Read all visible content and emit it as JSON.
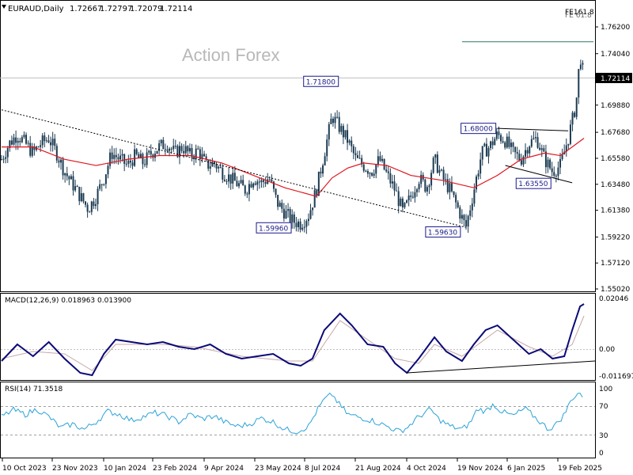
{
  "header": {
    "symbol": "EURAUD,Daily",
    "open": "1.72667",
    "high": "1.72797",
    "low": "1.72079",
    "close": "1.72114"
  },
  "watermark": "Action Forex",
  "fe_label": "FE161.8",
  "fe_label_2": "FE 61.8",
  "current_price": "1.72114",
  "colors": {
    "candle": "#1c3b52",
    "ma": "#e0141e",
    "macd": "#0a0a78",
    "signal": "#c8a8a8",
    "rsi": "#2aa2d8",
    "trendline": "#000000",
    "fe_line": "#2e7a64",
    "grid": "#c0c0c0",
    "label_bg": "#ffffff",
    "label_border": "#1a1a8c",
    "label_text": "#1a1a8c",
    "price_tag_bg": "#000000"
  },
  "price_axis": {
    "ticks": [
      "1.76200",
      "1.74040",
      "1.71980",
      "1.69880",
      "1.67680",
      "1.65580",
      "1.63480",
      "1.61380",
      "1.59220",
      "1.57120",
      "1.55020"
    ],
    "min": 1.5502,
    "max": 1.766
  },
  "macd_panel": {
    "label": "MACD(12,26,9) 0.018963 0.013900",
    "ticks": [
      "0.02046",
      "0.00",
      "-0.011697"
    ]
  },
  "rsi_panel": {
    "label": "RSI(14) 71.3518",
    "ticks": [
      "100",
      "70",
      "30",
      "0"
    ],
    "levels": [
      70,
      30
    ]
  },
  "time_axis": [
    "10 Oct 2023",
    "23 Nov 2023",
    "10 Jan 2024",
    "23 Feb 2024",
    "9 Apr 2024",
    "23 May 2024",
    "8 Jul 2024",
    "21 Aug 2024",
    "4 Oct 2024",
    "19 Nov 2024",
    "6 Jan 2025",
    "19 Feb 2025"
  ],
  "annotations": [
    {
      "label": "1.71800"
    },
    {
      "label": "1.68000"
    },
    {
      "label": "1.59960"
    },
    {
      "label": "1.59630"
    },
    {
      "label": "1.63550"
    }
  ],
  "chart_data": [
    {
      "type": "candlestick",
      "title": "EURAUD,Daily",
      "ylim": [
        1.5502,
        1.766
      ],
      "x_ticks": [
        "10 Oct 2023",
        "23 Nov 2023",
        "10 Jan 2024",
        "23 Feb 2024",
        "9 Apr 2024",
        "23 May 2024",
        "8 Jul 2024",
        "21 Aug 2024",
        "4 Oct 2024",
        "19 Nov 2024",
        "6 Jan 2025",
        "19 Feb 2025"
      ],
      "close_path": [
        [
          0,
          1.655
        ],
        [
          10,
          1.668
        ],
        [
          20,
          1.675
        ],
        [
          30,
          1.668
        ],
        [
          40,
          1.66
        ],
        [
          50,
          1.668
        ],
        [
          60,
          1.672
        ],
        [
          70,
          1.66
        ],
        [
          80,
          1.645
        ],
        [
          90,
          1.635
        ],
        [
          100,
          1.625
        ],
        [
          110,
          1.615
        ],
        [
          120,
          1.625
        ],
        [
          130,
          1.64
        ],
        [
          140,
          1.66
        ],
        [
          150,
          1.655
        ],
        [
          160,
          1.65
        ],
        [
          170,
          1.658
        ],
        [
          180,
          1.652
        ],
        [
          190,
          1.66
        ],
        [
          200,
          1.665
        ],
        [
          210,
          1.668
        ],
        [
          220,
          1.66
        ],
        [
          230,
          1.665
        ],
        [
          240,
          1.658
        ],
        [
          250,
          1.662
        ],
        [
          260,
          1.65
        ],
        [
          270,
          1.652
        ],
        [
          280,
          1.645
        ],
        [
          290,
          1.64
        ],
        [
          300,
          1.635
        ],
        [
          310,
          1.63
        ],
        [
          320,
          1.64
        ],
        [
          330,
          1.636
        ],
        [
          340,
          1.64
        ],
        [
          350,
          1.62
        ],
        [
          360,
          1.612
        ],
        [
          370,
          1.605
        ],
        [
          380,
          1.603
        ],
        [
          390,
          1.61
        ],
        [
          400,
          1.63
        ],
        [
          410,
          1.66
        ],
        [
          420,
          1.69
        ],
        [
          430,
          1.68
        ],
        [
          440,
          1.67
        ],
        [
          450,
          1.655
        ],
        [
          460,
          1.65
        ],
        [
          470,
          1.645
        ],
        [
          480,
          1.655
        ],
        [
          490,
          1.642
        ],
        [
          500,
          1.63
        ],
        [
          510,
          1.612
        ],
        [
          520,
          1.625
        ],
        [
          530,
          1.64
        ],
        [
          540,
          1.632
        ],
        [
          550,
          1.655
        ],
        [
          560,
          1.64
        ],
        [
          570,
          1.63
        ],
        [
          580,
          1.615
        ],
        [
          590,
          1.6
        ],
        [
          600,
          1.63
        ],
        [
          610,
          1.66
        ],
        [
          620,
          1.665
        ],
        [
          630,
          1.675
        ],
        [
          640,
          1.67
        ],
        [
          650,
          1.66
        ],
        [
          660,
          1.655
        ],
        [
          670,
          1.668
        ],
        [
          680,
          1.672
        ],
        [
          690,
          1.655
        ],
        [
          700,
          1.645
        ],
        [
          710,
          1.65
        ],
        [
          720,
          1.672
        ],
        [
          730,
          1.7
        ],
        [
          735,
          1.74
        ],
        [
          740,
          1.721
        ]
      ],
      "ma_path": [
        [
          0,
          1.665
        ],
        [
          40,
          1.665
        ],
        [
          80,
          1.655
        ],
        [
          120,
          1.65
        ],
        [
          160,
          1.655
        ],
        [
          200,
          1.658
        ],
        [
          240,
          1.658
        ],
        [
          280,
          1.652
        ],
        [
          320,
          1.642
        ],
        [
          360,
          1.632
        ],
        [
          400,
          1.625
        ],
        [
          420,
          1.64
        ],
        [
          440,
          1.648
        ],
        [
          460,
          1.652
        ],
        [
          490,
          1.65
        ],
        [
          520,
          1.642
        ],
        [
          560,
          1.638
        ],
        [
          600,
          1.632
        ],
        [
          630,
          1.642
        ],
        [
          660,
          1.655
        ],
        [
          690,
          1.66
        ],
        [
          710,
          1.658
        ],
        [
          725,
          1.665
        ],
        [
          740,
          1.672
        ]
      ],
      "trendlines": [
        {
          "from": [
            0,
            1.695
          ],
          "to": [
            590,
            1.6
          ]
        },
        {
          "from": [
            630,
            1.68
          ],
          "to": [
            720,
            1.678
          ]
        },
        {
          "from": [
            640,
            1.65
          ],
          "to": [
            725,
            1.636
          ]
        },
        {
          "from": [
            585,
            1.75
          ],
          "to": [
            752,
            1.75
          ]
        }
      ],
      "price_labels": [
        {
          "label": "1.71800",
          "x": 430,
          "y": 1.718
        },
        {
          "label": "1.68000",
          "x": 630,
          "y": 1.68
        },
        {
          "label": "1.59960",
          "x": 370,
          "y": 1.5996
        },
        {
          "label": "1.59630",
          "x": 585,
          "y": 1.5963
        },
        {
          "label": "1.63550",
          "x": 700,
          "y": 1.6355
        }
      ]
    },
    {
      "type": "line",
      "title": "MACD(12,26,9) 0.018963 0.013900",
      "ylim": [
        -0.012,
        0.022
      ],
      "series": [
        {
          "name": "MACD",
          "values": [
            [
              0,
              -0.005
            ],
            [
              20,
              0.002
            ],
            [
              40,
              -0.003
            ],
            [
              60,
              0.003
            ],
            [
              80,
              -0.004
            ],
            [
              100,
              -0.01
            ],
            [
              115,
              -0.011
            ],
            [
              130,
              -0.002
            ],
            [
              145,
              0.004
            ],
            [
              165,
              0.003
            ],
            [
              185,
              0.002
            ],
            [
              205,
              0.003
            ],
            [
              225,
              0.001
            ],
            [
              245,
              0.0
            ],
            [
              265,
              0.002
            ],
            [
              285,
              -0.002
            ],
            [
              305,
              -0.004
            ],
            [
              325,
              -0.003
            ],
            [
              345,
              -0.002
            ],
            [
              365,
              -0.006
            ],
            [
              380,
              -0.007
            ],
            [
              395,
              -0.004
            ],
            [
              410,
              0.008
            ],
            [
              430,
              0.015
            ],
            [
              445,
              0.01
            ],
            [
              465,
              0.002
            ],
            [
              485,
              0.001
            ],
            [
              500,
              -0.006
            ],
            [
              515,
              -0.01
            ],
            [
              530,
              -0.004
            ],
            [
              550,
              0.005
            ],
            [
              565,
              -0.001
            ],
            [
              585,
              -0.005
            ],
            [
              600,
              0.002
            ],
            [
              615,
              0.008
            ],
            [
              630,
              0.01
            ],
            [
              650,
              0.004
            ],
            [
              670,
              -0.002
            ],
            [
              685,
              0.0
            ],
            [
              700,
              -0.004
            ],
            [
              715,
              -0.003
            ],
            [
              725,
              0.008
            ],
            [
              735,
              0.018
            ],
            [
              740,
              0.019
            ]
          ]
        },
        {
          "name": "Signal",
          "values": [
            [
              0,
              -0.004
            ],
            [
              40,
              -0.001
            ],
            [
              80,
              -0.002
            ],
            [
              115,
              -0.009
            ],
            [
              145,
              0.002
            ],
            [
              205,
              0.002
            ],
            [
              245,
              0.001
            ],
            [
              305,
              -0.003
            ],
            [
              365,
              -0.005
            ],
            [
              395,
              -0.005
            ],
            [
              430,
              0.012
            ],
            [
              465,
              0.004
            ],
            [
              500,
              -0.004
            ],
            [
              530,
              -0.006
            ],
            [
              550,
              0.002
            ],
            [
              585,
              -0.003
            ],
            [
              630,
              0.008
            ],
            [
              670,
              0.001
            ],
            [
              700,
              -0.003
            ],
            [
              725,
              0.002
            ],
            [
              740,
              0.014
            ]
          ]
        }
      ],
      "trendline": {
        "from": [
          515,
          -0.01
        ],
        "to": [
          752,
          -0.005
        ]
      }
    },
    {
      "type": "line",
      "title": "RSI(14) 71.3518",
      "ylim": [
        0,
        100
      ],
      "series": [
        {
          "name": "RSI",
          "values": [
            [
              0,
              55
            ],
            [
              15,
              64
            ],
            [
              30,
              58
            ],
            [
              45,
              65
            ],
            [
              60,
              55
            ],
            [
              75,
              40
            ],
            [
              90,
              45
            ],
            [
              105,
              38
            ],
            [
              120,
              48
            ],
            [
              135,
              62
            ],
            [
              150,
              58
            ],
            [
              165,
              50
            ],
            [
              180,
              55
            ],
            [
              195,
              60
            ],
            [
              210,
              56
            ],
            [
              225,
              48
            ],
            [
              240,
              58
            ],
            [
              255,
              52
            ],
            [
              270,
              56
            ],
            [
              285,
              47
            ],
            [
              300,
              42
            ],
            [
              315,
              45
            ],
            [
              330,
              53
            ],
            [
              345,
              48
            ],
            [
              360,
              38
            ],
            [
              375,
              35
            ],
            [
              390,
              42
            ],
            [
              400,
              62
            ],
            [
              410,
              78
            ],
            [
              420,
              85
            ],
            [
              430,
              70
            ],
            [
              440,
              58
            ],
            [
              455,
              54
            ],
            [
              470,
              50
            ],
            [
              490,
              42
            ],
            [
              505,
              35
            ],
            [
              515,
              40
            ],
            [
              530,
              55
            ],
            [
              545,
              65
            ],
            [
              555,
              52
            ],
            [
              570,
              42
            ],
            [
              585,
              38
            ],
            [
              595,
              46
            ],
            [
              605,
              66
            ],
            [
              615,
              62
            ],
            [
              625,
              72
            ],
            [
              635,
              62
            ],
            [
              650,
              56
            ],
            [
              665,
              66
            ],
            [
              680,
              52
            ],
            [
              695,
              38
            ],
            [
              705,
              45
            ],
            [
              715,
              58
            ],
            [
              725,
              80
            ],
            [
              735,
              88
            ],
            [
              740,
              71
            ]
          ]
        }
      ]
    }
  ]
}
